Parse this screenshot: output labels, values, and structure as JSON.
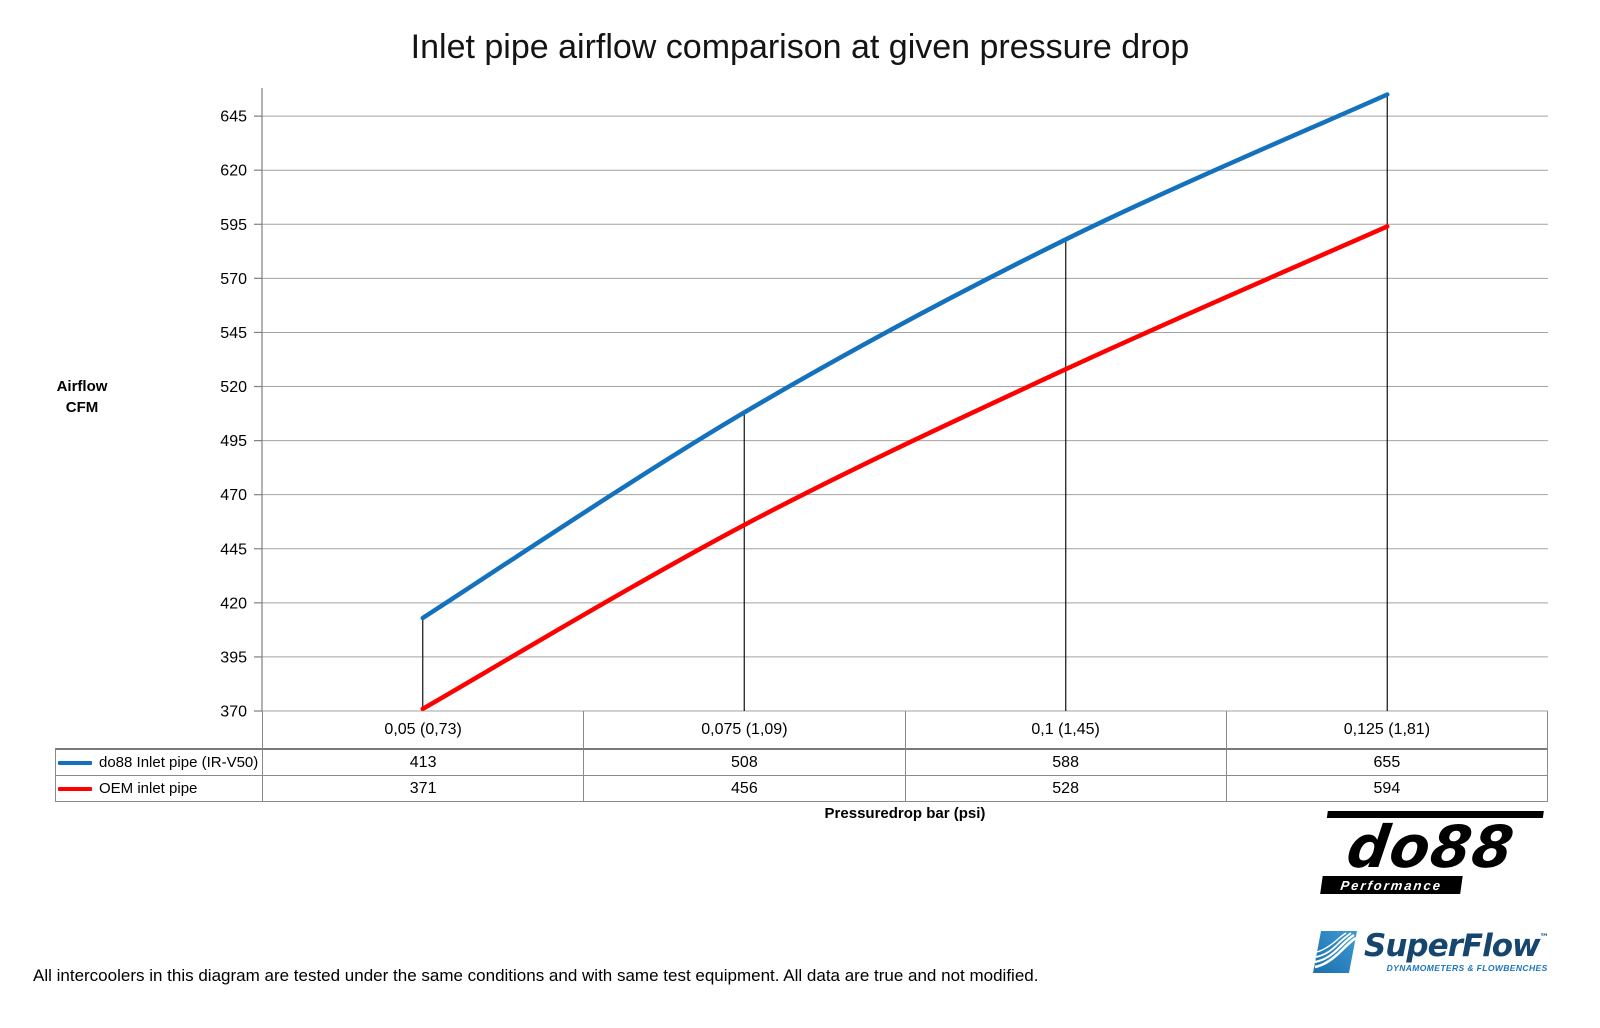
{
  "title": "Inlet pipe airflow comparison at given pressure drop",
  "y_axis": {
    "label_line1": "Airflow",
    "label_line2": "CFM"
  },
  "x_axis": {
    "label": "Pressuredrop bar (psi)"
  },
  "footer": "All intercoolers in this diagram are tested under the same conditions and with same test equipment. All data are true and not modified.",
  "chart_data": {
    "type": "line",
    "title": "Inlet pipe airflow comparison at given pressure drop",
    "xlabel": "Pressuredrop bar (psi)",
    "ylabel": "Airflow CFM",
    "categories": [
      "0,05 (0,73)",
      "0,075 (1,09)",
      "0,1 (1,45)",
      "0,125 (1,81)"
    ],
    "series": [
      {
        "name": "do88 Inlet pipe (IR-V50)",
        "color": "#1371be",
        "values": [
          413,
          508,
          588,
          655
        ]
      },
      {
        "name": "OEM inlet pipe",
        "color": "#fe0000",
        "values": [
          371,
          456,
          528,
          594
        ]
      }
    ],
    "yticks": [
      370,
      395,
      420,
      445,
      470,
      495,
      520,
      545,
      570,
      595,
      620,
      645
    ],
    "ylim": [
      370,
      658
    ],
    "grid": true,
    "legend_position": "table-left",
    "category_drop_lines": true
  },
  "colors": {
    "gridline": "#a3a3a3",
    "axis": "#808080",
    "drop_line": "#111111",
    "table_border": "#8a8a8a"
  },
  "logos": {
    "do88": {
      "text": "do88",
      "subtext": "Performance"
    },
    "superflow": {
      "text": "SuperFlow",
      "tm": "™",
      "subtext": "DYNAMOMETERS & FLOWBENCHES"
    }
  }
}
